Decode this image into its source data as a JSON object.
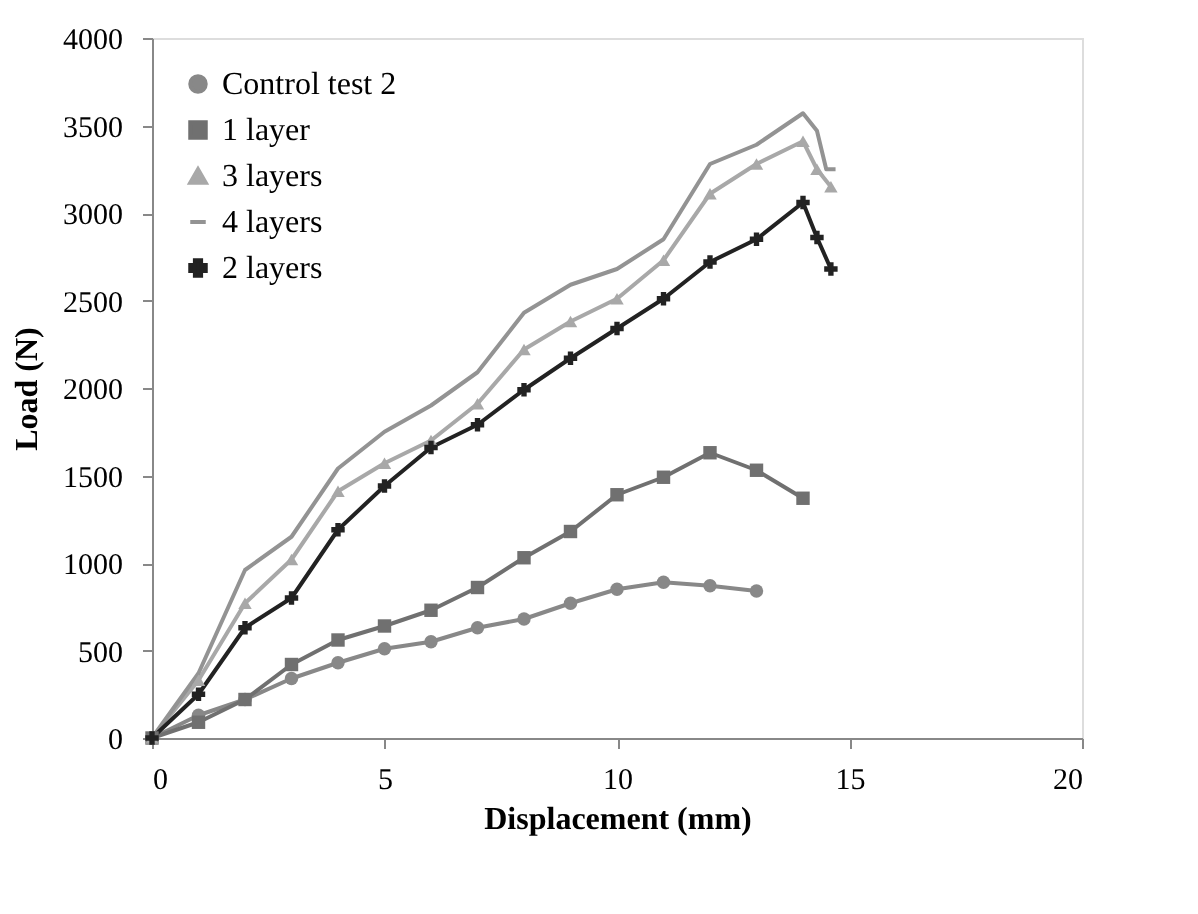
{
  "chart_data": {
    "type": "line",
    "xlabel": "Displacement (mm)",
    "ylabel": "Load (N)",
    "xlim": [
      0,
      20
    ],
    "xticks": [
      0,
      5,
      10,
      15,
      20
    ],
    "ylim": [
      0,
      4000
    ],
    "yticks": [
      0,
      500,
      1000,
      1500,
      2000,
      2500,
      3000,
      3500,
      4000
    ],
    "grid": false,
    "legend": "top left",
    "series": [
      {
        "name": "Control test 2",
        "color": "#888888",
        "marker": "circle",
        "x": [
          0,
          1,
          2,
          3,
          4,
          5,
          6,
          7,
          8,
          9,
          10,
          11,
          12,
          13
        ],
        "values": [
          0,
          130,
          220,
          340,
          430,
          510,
          550,
          630,
          680,
          770,
          850,
          890,
          870,
          840
        ]
      },
      {
        "name": "1 layer",
        "color": "#707070",
        "marker": "square",
        "x": [
          0,
          1,
          2,
          3,
          4,
          5,
          6,
          7,
          8,
          9,
          10,
          11,
          12,
          13,
          14
        ],
        "values": [
          0,
          90,
          220,
          420,
          560,
          640,
          730,
          860,
          1030,
          1180,
          1390,
          1490,
          1630,
          1530,
          1370
        ]
      },
      {
        "name": "3 layers",
        "color": "#a8a8a8",
        "marker": "triangle",
        "x": [
          0,
          1,
          2,
          3,
          4,
          5,
          6,
          7,
          8,
          9,
          10,
          11,
          12,
          13,
          14,
          14.3,
          14.6
        ],
        "values": [
          0,
          330,
          770,
          1020,
          1410,
          1570,
          1700,
          1910,
          2220,
          2380,
          2510,
          2730,
          3110,
          3280,
          3410,
          3250,
          3150
        ]
      },
      {
        "name": "4 layers",
        "color": "#939393",
        "marker": "none",
        "x": [
          0,
          1,
          2,
          3,
          4,
          5,
          6,
          7,
          8,
          9,
          10,
          11,
          12,
          13,
          14,
          14.3,
          14.5,
          14.7
        ],
        "values": [
          0,
          370,
          960,
          1150,
          1540,
          1750,
          1900,
          2090,
          2430,
          2590,
          2680,
          2850,
          3280,
          3390,
          3570,
          3470,
          3250,
          3250
        ]
      },
      {
        "name": "2 layers",
        "color": "#222222",
        "marker": "cross",
        "x": [
          0,
          1,
          2,
          3,
          4,
          5,
          6,
          7,
          8,
          9,
          10,
          11,
          12,
          13,
          14,
          14.3,
          14.6
        ],
        "values": [
          0,
          250,
          630,
          800,
          1190,
          1440,
          1660,
          1790,
          1990,
          2170,
          2340,
          2510,
          2720,
          2850,
          3060,
          2860,
          2680
        ]
      }
    ]
  }
}
